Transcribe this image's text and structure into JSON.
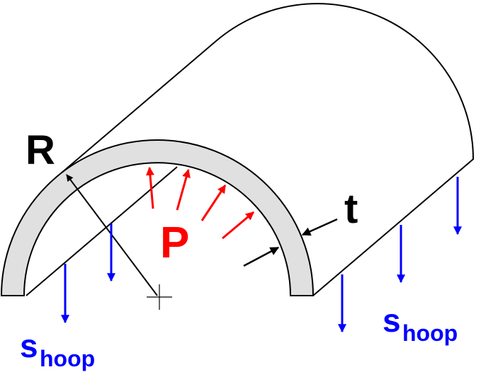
{
  "labels": {
    "radius": "R",
    "pressure": "P",
    "thickness": "t",
    "stress_left": {
      "symbol": "s",
      "subscript": "hoop"
    },
    "stress_right": {
      "symbol": "s",
      "subscript": "hoop"
    }
  }
}
